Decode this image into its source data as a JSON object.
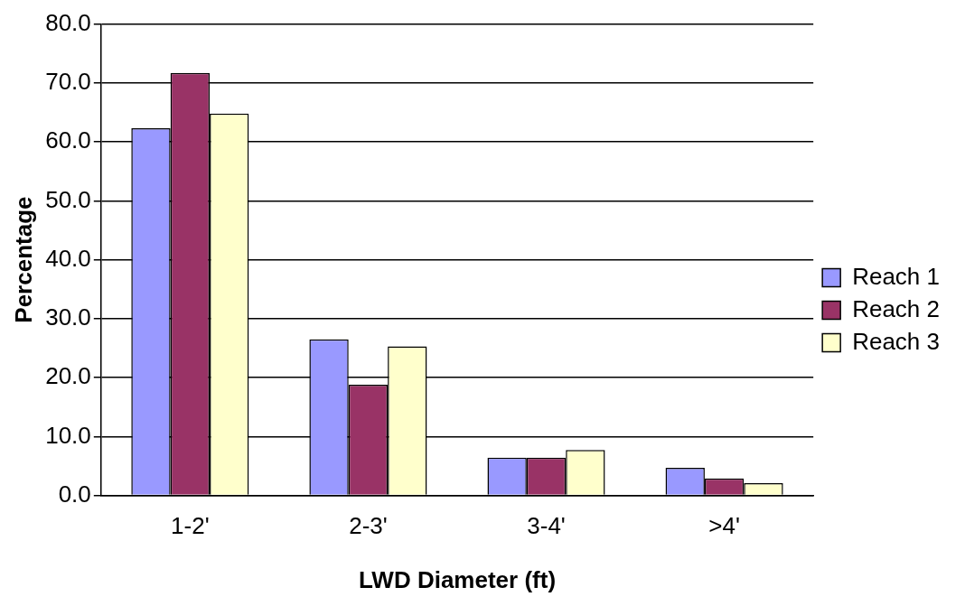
{
  "chart_data": {
    "type": "bar",
    "xlabel": "LWD Diameter (ft)",
    "ylabel": "Percentage",
    "categories": [
      "1-2'",
      "2-3'",
      "3-4'",
      ">4'"
    ],
    "series": [
      {
        "name": "Reach 1",
        "color": "#9999ff",
        "values": [
          62.3,
          26.5,
          6.4,
          4.7
        ]
      },
      {
        "name": "Reach 2",
        "color": "#993366",
        "values": [
          71.7,
          18.8,
          6.4,
          2.9
        ]
      },
      {
        "name": "Reach 3",
        "color": "#ffffcc",
        "values": [
          64.8,
          25.3,
          7.7,
          2.1
        ]
      }
    ],
    "ylim": [
      0,
      80
    ],
    "yticks": [
      {
        "value": 0,
        "label": "0.0"
      },
      {
        "value": 10,
        "label": "10.0"
      },
      {
        "value": 20,
        "label": "20.0"
      },
      {
        "value": 30,
        "label": "30.0"
      },
      {
        "value": 40,
        "label": "40.0"
      },
      {
        "value": 50,
        "label": "50.0"
      },
      {
        "value": 60,
        "label": "60.0"
      },
      {
        "value": 70,
        "label": "70.0"
      },
      {
        "value": 80,
        "label": "80.0"
      }
    ],
    "grid": "y",
    "legend": "right"
  }
}
